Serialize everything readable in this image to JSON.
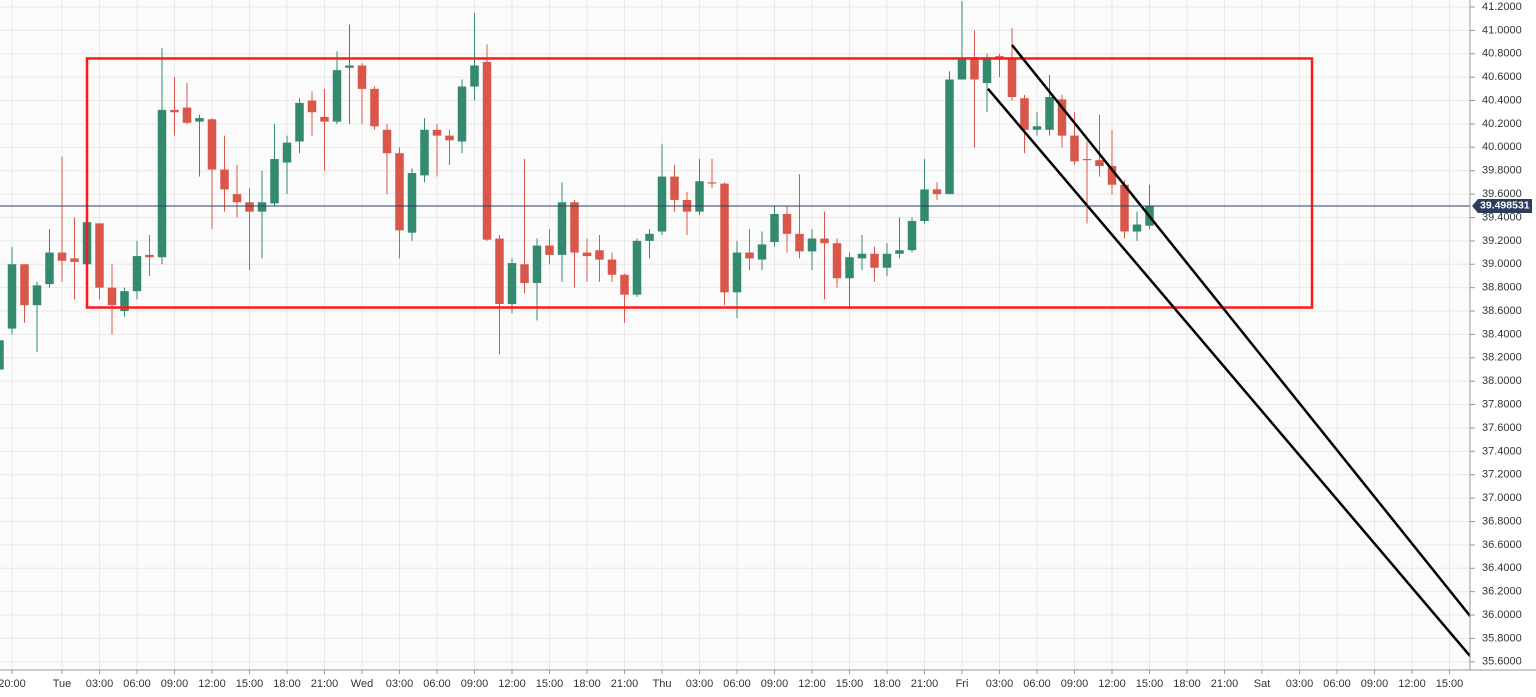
{
  "chart_data": {
    "type": "candlestick",
    "x": [
      -5,
      -4,
      -3,
      -2,
      -1,
      0,
      1,
      2,
      3,
      4,
      5,
      6,
      7,
      8,
      9,
      10,
      11,
      12,
      13,
      14,
      15,
      16,
      17,
      18,
      19,
      20,
      21,
      22,
      23,
      24,
      25,
      26,
      27,
      28,
      29,
      30,
      31,
      32,
      33,
      34,
      35,
      36,
      37,
      38,
      39,
      40,
      41,
      42,
      43,
      44,
      45,
      46,
      47,
      48,
      49,
      50,
      51,
      52,
      53,
      54,
      55,
      56,
      57,
      58,
      59,
      60,
      61,
      62,
      63,
      64,
      65,
      66,
      67,
      68,
      69,
      70,
      71,
      72,
      73,
      74,
      75,
      76,
      77,
      78,
      79,
      80,
      81,
      82,
      83,
      84,
      85,
      86,
      87
    ],
    "open": [
      38.1,
      38.45,
      39.0,
      38.65,
      38.83,
      39.1,
      39.05,
      39.0,
      39.35,
      38.8,
      38.6,
      38.77,
      39.08,
      39.06,
      40.32,
      40.34,
      40.22,
      40.24,
      39.81,
      39.6,
      39.53,
      39.45,
      39.52,
      39.87,
      40.05,
      40.4,
      40.26,
      40.22,
      40.68,
      40.7,
      40.5,
      40.15,
      39.95,
      39.27,
      39.76,
      40.15,
      40.1,
      40.05,
      40.52,
      40.73,
      39.22,
      38.66,
      39.0,
      38.84,
      39.16,
      39.08,
      39.53,
      39.1,
      39.12,
      39.04,
      38.91,
      38.74,
      39.2,
      39.28,
      39.75,
      39.55,
      39.45,
      39.7,
      39.69,
      38.76,
      39.1,
      39.04,
      39.19,
      39.43,
      39.26,
      39.11,
      39.22,
      39.18,
      38.88,
      39.05,
      39.09,
      38.97,
      39.09,
      39.12,
      39.37,
      39.64,
      39.6,
      40.58,
      40.77,
      40.55,
      40.78,
      40.77,
      40.42,
      40.15,
      40.15,
      40.41,
      40.1,
      39.9,
      39.89,
      39.84,
      39.68,
      39.28,
      39.33
    ],
    "high": [
      38.4,
      39.15,
      39.0,
      38.85,
      39.3,
      39.92,
      39.4,
      39.36,
      39.35,
      39.0,
      38.8,
      39.2,
      39.25,
      40.85,
      40.6,
      40.55,
      40.28,
      40.25,
      40.1,
      39.85,
      39.65,
      39.8,
      40.2,
      40.1,
      40.42,
      40.48,
      40.5,
      40.82,
      41.05,
      40.72,
      40.52,
      40.2,
      40.0,
      39.82,
      40.25,
      40.2,
      40.15,
      40.58,
      41.15,
      40.88,
      39.25,
      39.05,
      39.9,
      39.22,
      39.3,
      39.7,
      39.55,
      39.22,
      39.25,
      39.1,
      38.92,
      39.22,
      39.3,
      40.03,
      39.85,
      39.62,
      39.9,
      39.9,
      39.7,
      39.2,
      39.3,
      39.28,
      39.5,
      39.5,
      39.77,
      39.3,
      39.45,
      39.22,
      39.1,
      39.25,
      39.15,
      39.18,
      39.4,
      39.4,
      39.9,
      39.7,
      40.65,
      41.25,
      41.0,
      40.8,
      40.8,
      41.02,
      40.45,
      40.3,
      40.62,
      40.45,
      40.3,
      40.05,
      40.28,
      40.15,
      39.72,
      39.45,
      39.68
    ],
    "low": [
      38.1,
      38.4,
      38.5,
      38.25,
      38.8,
      38.85,
      38.7,
      38.85,
      38.7,
      38.4,
      38.55,
      38.7,
      38.9,
      39.0,
      40.1,
      40.2,
      39.75,
      39.3,
      39.45,
      39.4,
      38.95,
      39.05,
      39.5,
      39.6,
      39.95,
      40.1,
      39.8,
      40.2,
      40.2,
      40.2,
      40.15,
      39.6,
      39.05,
      39.2,
      39.7,
      39.75,
      39.85,
      39.95,
      40.4,
      39.2,
      38.23,
      38.58,
      38.75,
      38.52,
      39.0,
      38.85,
      38.8,
      38.85,
      38.85,
      38.85,
      38.5,
      38.72,
      39.05,
      39.25,
      39.45,
      39.25,
      39.42,
      39.65,
      38.65,
      38.54,
      38.95,
      38.95,
      39.15,
      39.1,
      39.05,
      38.95,
      38.7,
      38.8,
      38.62,
      38.95,
      38.85,
      38.9,
      39.05,
      39.1,
      39.35,
      39.55,
      39.6,
      40.58,
      40.0,
      40.3,
      40.6,
      40.4,
      39.95,
      40.1,
      40.1,
      40.0,
      39.85,
      39.35,
      39.75,
      39.6,
      39.22,
      39.2,
      39.3
    ],
    "close": [
      38.35,
      39.0,
      38.65,
      38.82,
      39.1,
      39.03,
      39.02,
      39.36,
      38.8,
      38.65,
      38.77,
      39.07,
      39.06,
      40.32,
      40.3,
      40.21,
      40.25,
      39.81,
      39.64,
      39.53,
      39.45,
      39.53,
      39.9,
      40.04,
      40.38,
      40.3,
      40.22,
      40.66,
      40.7,
      40.5,
      40.18,
      39.95,
      39.29,
      39.78,
      40.15,
      40.1,
      40.06,
      40.52,
      40.7,
      39.21,
      38.66,
      39.01,
      38.84,
      39.16,
      39.08,
      39.53,
      39.1,
      39.07,
      39.04,
      38.91,
      38.74,
      39.2,
      39.26,
      39.75,
      39.55,
      39.45,
      39.71,
      39.69,
      38.76,
      39.1,
      39.05,
      39.17,
      39.43,
      39.26,
      39.11,
      39.22,
      39.18,
      38.88,
      39.06,
      39.09,
      38.97,
      39.09,
      39.12,
      39.37,
      39.64,
      39.6,
      40.58,
      40.76,
      40.58,
      40.77,
      40.75,
      40.43,
      40.15,
      40.18,
      40.43,
      40.1,
      39.88,
      39.89,
      39.84,
      39.68,
      39.28,
      39.34,
      39.5
    ],
    "up_color": "#338a6e",
    "down_color": "#d9574a",
    "last_price": 39.498531,
    "last_price_color": "#2b3e5e",
    "xlim": [
      -4.96,
      112.64
    ],
    "ylim": [
      35.53,
      41.26
    ],
    "grid": true,
    "xticks": [
      {
        "value": -4,
        "label": "20:00"
      },
      {
        "value": 0,
        "label": "Tue"
      },
      {
        "value": 3,
        "label": "03:00"
      },
      {
        "value": 6,
        "label": "06:00"
      },
      {
        "value": 9,
        "label": "09:00"
      },
      {
        "value": 12,
        "label": "12:00"
      },
      {
        "value": 15,
        "label": "15:00"
      },
      {
        "value": 18,
        "label": "18:00"
      },
      {
        "value": 21,
        "label": "21:00"
      },
      {
        "value": 24,
        "label": "Wed"
      },
      {
        "value": 27,
        "label": "03:00"
      },
      {
        "value": 30,
        "label": "06:00"
      },
      {
        "value": 33,
        "label": "09:00"
      },
      {
        "value": 36,
        "label": "12:00"
      },
      {
        "value": 39,
        "label": "15:00"
      },
      {
        "value": 42,
        "label": "18:00"
      },
      {
        "value": 45,
        "label": "21:00"
      },
      {
        "value": 48,
        "label": "Thu"
      },
      {
        "value": 51,
        "label": "03:00"
      },
      {
        "value": 54,
        "label": "06:00"
      },
      {
        "value": 57,
        "label": "09:00"
      },
      {
        "value": 60,
        "label": "12:00"
      },
      {
        "value": 63,
        "label": "15:00"
      },
      {
        "value": 66,
        "label": "18:00"
      },
      {
        "value": 69,
        "label": "21:00"
      },
      {
        "value": 72,
        "label": "Fri"
      },
      {
        "value": 75,
        "label": "03:00"
      },
      {
        "value": 78,
        "label": "06:00"
      },
      {
        "value": 81,
        "label": "09:00"
      },
      {
        "value": 84,
        "label": "12:00"
      },
      {
        "value": 87,
        "label": "15:00"
      },
      {
        "value": 90,
        "label": "18:00"
      },
      {
        "value": 93,
        "label": "21:00"
      },
      {
        "value": 96,
        "label": "Sat"
      },
      {
        "value": 99,
        "label": "03:00"
      },
      {
        "value": 102,
        "label": "06:00"
      },
      {
        "value": 105,
        "label": "09:00"
      },
      {
        "value": 108,
        "label": "12:00"
      },
      {
        "value": 111,
        "label": "15:00"
      }
    ],
    "yticks": [
      {
        "value": 41.2,
        "label": "41.2000"
      },
      {
        "value": 41.0,
        "label": "41.0000"
      },
      {
        "value": 40.8,
        "label": "40.8000"
      },
      {
        "value": 40.6,
        "label": "40.6000"
      },
      {
        "value": 40.4,
        "label": "40.4000"
      },
      {
        "value": 40.2,
        "label": "40.2000"
      },
      {
        "value": 40.0,
        "label": "40.0000"
      },
      {
        "value": 39.8,
        "label": "39.8000"
      },
      {
        "value": 39.6,
        "label": "39.6000"
      },
      {
        "value": 39.4,
        "label": "39.4000"
      },
      {
        "value": 39.2,
        "label": "39.2000"
      },
      {
        "value": 39.0,
        "label": "39.0000"
      },
      {
        "value": 38.8,
        "label": "38.8000"
      },
      {
        "value": 38.6,
        "label": "38.6000"
      },
      {
        "value": 38.4,
        "label": "38.4000"
      },
      {
        "value": 38.2,
        "label": "38.2000"
      },
      {
        "value": 38.0,
        "label": "38.0000"
      },
      {
        "value": 37.8,
        "label": "37.8000"
      },
      {
        "value": 37.6,
        "label": "37.6000"
      },
      {
        "value": 37.4,
        "label": "37.4000"
      },
      {
        "value": 37.2,
        "label": "37.2000"
      },
      {
        "value": 37.0,
        "label": "37.0000"
      },
      {
        "value": 36.8,
        "label": "36.8000"
      },
      {
        "value": 36.6,
        "label": "36.6000"
      },
      {
        "value": 36.4,
        "label": "36.4000"
      },
      {
        "value": 36.2,
        "label": "36.2000"
      },
      {
        "value": 36.0,
        "label": "36.0000"
      },
      {
        "value": 35.8,
        "label": "35.8000"
      },
      {
        "value": 35.6,
        "label": "35.6000"
      }
    ],
    "annotations": {
      "box": {
        "x": [
          2,
          100
        ],
        "y": [
          40.76,
          38.63
        ],
        "color": "#ff1a1a"
      },
      "trend_lines": [
        {
          "x": [
            76,
            113.04
          ],
          "y": [
            40.875,
            35.94
          ],
          "color": "#000000"
        },
        {
          "x": [
            74.08,
            112.88
          ],
          "y": [
            40.5,
            35.62
          ],
          "color": "#000000"
        }
      ]
    }
  }
}
